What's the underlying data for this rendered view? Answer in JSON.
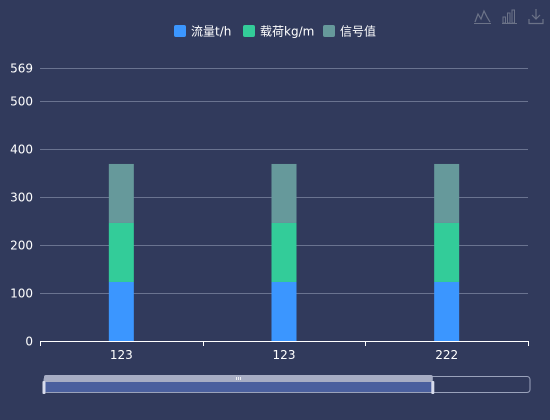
{
  "chart_data": {
    "type": "bar",
    "stacked": true,
    "categories": [
      "123",
      "123",
      "222"
    ],
    "series": [
      {
        "name": "流量t/h",
        "values": [
          123,
          123,
          123
        ],
        "color": "#3b96ff"
      },
      {
        "name": "载荷kg/m",
        "values": [
          123,
          123,
          123
        ],
        "color": "#33cc99"
      },
      {
        "name": "信号值",
        "values": [
          123,
          123,
          123
        ],
        "color": "#66999b"
      }
    ],
    "ylim": [
      0,
      569
    ],
    "yticks": [
      "0",
      "100",
      "200",
      "300",
      "400",
      "500",
      "569"
    ],
    "ytick_values": [
      0,
      100,
      200,
      300,
      400,
      500,
      569
    ],
    "grid": true,
    "legend": "top-center",
    "datazoom": {
      "start": 0,
      "end": 80
    }
  },
  "toolbox": {
    "icons": [
      "line-chart-icon",
      "bar-chart-icon",
      "download-icon"
    ]
  }
}
